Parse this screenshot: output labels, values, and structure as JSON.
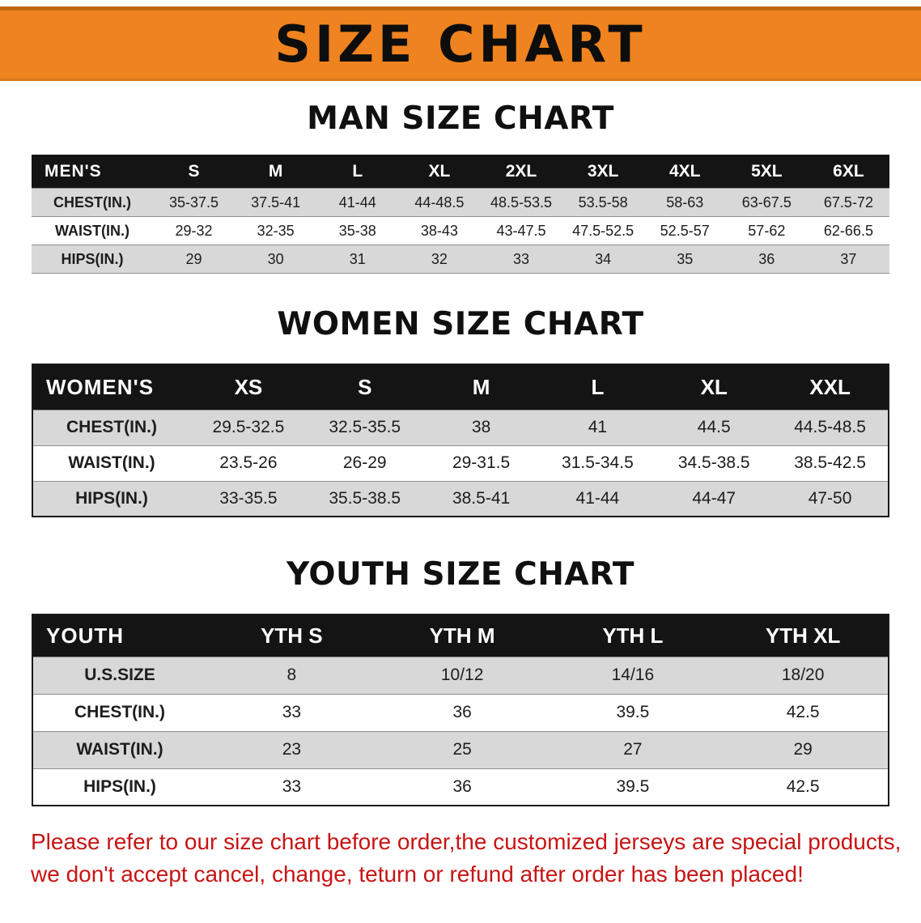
{
  "banner": {
    "title": "SIZE CHART"
  },
  "colors": {
    "banner_orange": "#ef8320",
    "table_header_black": "#141414",
    "row_shade_gray": "#d8d8d8",
    "disclaimer_red": "#c81414"
  },
  "chart_data": [
    {
      "type": "table",
      "title": "MAN SIZE CHART",
      "header_label": "MEN'S",
      "columns": [
        "S",
        "M",
        "L",
        "XL",
        "2XL",
        "3XL",
        "4XL",
        "5XL",
        "6XL"
      ],
      "rows": [
        {
          "label": "CHEST(IN.)",
          "values": [
            "35-37.5",
            "37.5-41",
            "41-44",
            "44-48.5",
            "48.5-53.5",
            "53.5-58",
            "58-63",
            "63-67.5",
            "67.5-72"
          ]
        },
        {
          "label": "WAIST(IN.)",
          "values": [
            "29-32",
            "32-35",
            "35-38",
            "38-43",
            "43-47.5",
            "47.5-52.5",
            "52.5-57",
            "57-62",
            "62-66.5"
          ]
        },
        {
          "label": "HIPS(IN.)",
          "values": [
            "29",
            "30",
            "31",
            "32",
            "33",
            "34",
            "35",
            "36",
            "37"
          ]
        }
      ]
    },
    {
      "type": "table",
      "title": "WOMEN SIZE CHART",
      "header_label": "WOMEN'S",
      "columns": [
        "XS",
        "S",
        "M",
        "L",
        "XL",
        "XXL"
      ],
      "rows": [
        {
          "label": "CHEST(IN.)",
          "values": [
            "29.5-32.5",
            "32.5-35.5",
            "38",
            "41",
            "44.5",
            "44.5-48.5"
          ]
        },
        {
          "label": "WAIST(IN.)",
          "values": [
            "23.5-26",
            "26-29",
            "29-31.5",
            "31.5-34.5",
            "34.5-38.5",
            "38.5-42.5"
          ]
        },
        {
          "label": "HIPS(IN.)",
          "values": [
            "33-35.5",
            "35.5-38.5",
            "38.5-41",
            "41-44",
            "44-47",
            "47-50"
          ]
        }
      ]
    },
    {
      "type": "table",
      "title": "YOUTH SIZE CHART",
      "header_label": "YOUTH",
      "columns": [
        "YTH S",
        "YTH M",
        "YTH L",
        "YTH XL"
      ],
      "rows": [
        {
          "label": "U.S.SIZE",
          "values": [
            "8",
            "10/12",
            "14/16",
            "18/20"
          ]
        },
        {
          "label": "CHEST(IN.)",
          "values": [
            "33",
            "36",
            "39.5",
            "42.5"
          ]
        },
        {
          "label": "WAIST(IN.)",
          "values": [
            "23",
            "25",
            "27",
            "29"
          ]
        },
        {
          "label": "HIPS(IN.)",
          "values": [
            "33",
            "36",
            "39.5",
            "42.5"
          ]
        }
      ]
    }
  ],
  "disclaimer": {
    "line1": "Please refer to our size chart before order,the customized jerseys are special products,",
    "line2": "we don't accept cancel, change, teturn or refund after order has been placed!"
  }
}
